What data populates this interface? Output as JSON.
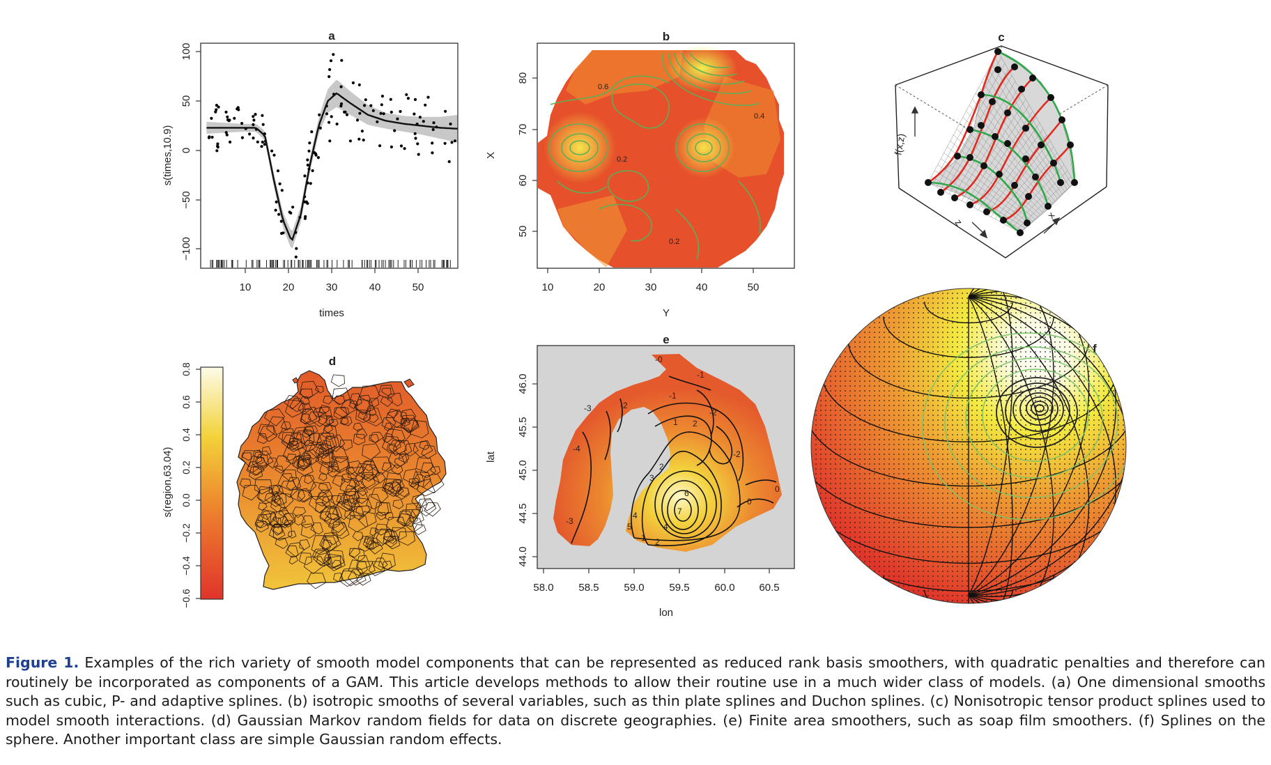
{
  "figure": {
    "panels": {
      "a": {
        "label": "a",
        "xlabel": "times",
        "ylabel": "s(times,10.9)",
        "xticks": [
          "10",
          "20",
          "30",
          "40",
          "50"
        ],
        "yticks": [
          "100",
          "50",
          "0",
          "−50",
          "−100"
        ]
      },
      "b": {
        "label": "b",
        "xlabel": "Y",
        "ylabel": "X",
        "xticks": [
          "10",
          "20",
          "30",
          "40",
          "50"
        ],
        "yticks": [
          "80",
          "70",
          "60",
          "50"
        ]
      },
      "c": {
        "label": "c",
        "zaxis": "f(x,z)",
        "axis1": "z",
        "axis2": "x"
      },
      "d": {
        "label": "d",
        "ylabel": "s(region,63.04)",
        "ticks": [
          "0.8",
          "0.6",
          "0.4",
          "0.2",
          "0.0",
          "−0.2",
          "−0.4",
          "−0.6"
        ]
      },
      "e": {
        "label": "e",
        "xlabel": "lon",
        "ylabel": "lat",
        "xticks": [
          "58.0",
          "58.5",
          "59.0",
          "59.5",
          "60.0",
          "60.5"
        ],
        "yticks": [
          "46.0",
          "45.5",
          "45.0",
          "44.5",
          "44.0"
        ]
      },
      "f": {
        "label": "f"
      }
    }
  },
  "chart_data": [
    {
      "type": "scatter",
      "panel": "a",
      "xlabel": "times",
      "ylabel": "s(times,10.9)",
      "xlim": [
        1,
        58
      ],
      "ylim": [
        -115,
        105
      ],
      "fit_x": [
        2,
        6,
        10,
        13,
        15,
        17,
        19,
        21,
        23,
        25,
        27,
        29,
        31,
        34,
        38,
        42,
        46,
        50,
        54,
        58
      ],
      "fit_y": [
        23,
        23,
        23,
        23,
        15,
        -30,
        -70,
        -92,
        -65,
        -15,
        25,
        50,
        58,
        48,
        36,
        30,
        27,
        25,
        23,
        22
      ],
      "band_halfwidth": [
        6,
        5,
        4,
        4,
        5,
        7,
        8,
        9,
        8,
        7,
        8,
        12,
        14,
        12,
        10,
        8,
        8,
        9,
        11,
        14
      ]
    },
    {
      "type": "heatmap",
      "panel": "b",
      "xlabel": "Y",
      "ylabel": "X",
      "xlim": [
        10,
        57
      ],
      "ylim": [
        45,
        87
      ]
    },
    {
      "type": "heatmap",
      "panel": "e",
      "xlabel": "lon",
      "ylabel": "lat",
      "xlim": [
        57.9,
        60.75
      ],
      "ylim": [
        43.9,
        46.45
      ],
      "contour_labels": [
        "-3",
        "-2",
        "-1",
        "0",
        "1",
        "2",
        "3",
        "4",
        "5",
        "6",
        "7"
      ]
    }
  ],
  "caption": {
    "label": "Figure 1.",
    "text": "Examples of the rich variety of smooth model components that can be represented as reduced rank basis smoothers, with quadratic penalties and therefore can routinely be incorporated as components of a GAM. This article develops methods to allow their routine use in a much wider class of models. (a) One dimensional smooths such as cubic, P- and adaptive splines. (b) isotropic smooths of several variables, such as thin plate splines and Duchon splines. (c) Nonisotropic tensor product splines used to model smooth interactions. (d) Gaussian Markov random fields for data on discrete geographies. (e) Finite area smoothers, such as soap film smoothers. (f) Splines on the sphere. Another important class are simple Gaussian random effects."
  },
  "colors": {
    "low": "#e0392a",
    "mid": "#ef8a30",
    "high": "#f4ea3a",
    "top": "#fdfbe6",
    "contour_b": "#5fae57",
    "caption_label": "#1f3f8f"
  }
}
